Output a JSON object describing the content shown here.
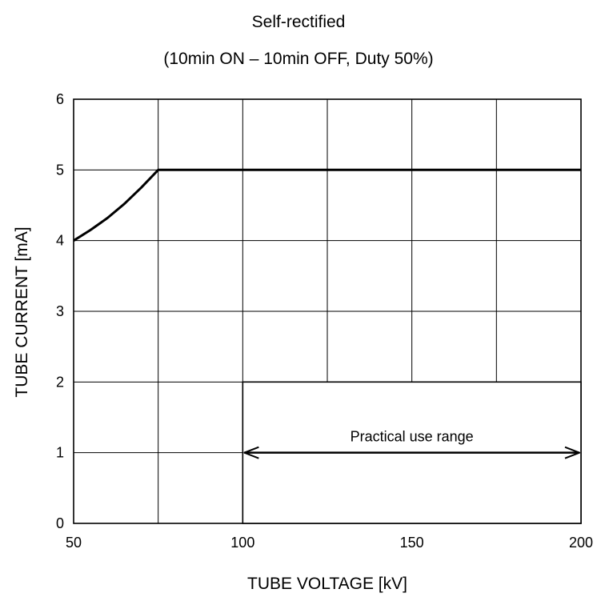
{
  "chart_data": {
    "type": "line",
    "title": "Self-rectified",
    "subtitle": "(10min ON – 10min OFF, Duty 50%)",
    "xlabel": "TUBE VOLTAGE  [kV]",
    "ylabel": "TUBE CURRENT  [mA]",
    "xlim": [
      50,
      200
    ],
    "ylim": [
      0,
      6
    ],
    "xticks": [
      50,
      100,
      150,
      200
    ],
    "yticks": [
      0,
      1,
      2,
      3,
      4,
      5,
      6
    ],
    "grid": true,
    "series": [
      {
        "x": [
          50,
          55,
          60,
          65,
          70,
          75,
          100,
          150,
          200
        ],
        "y": [
          4.0,
          4.15,
          4.32,
          4.52,
          4.75,
          5.0,
          5.0,
          5.0,
          5.0
        ]
      }
    ],
    "practical_use_region": {
      "x": [
        100,
        200
      ],
      "y": [
        0,
        2
      ]
    },
    "annotation": {
      "text": "Practical use range",
      "x_start": 100,
      "x_end": 200,
      "y": 1
    }
  }
}
